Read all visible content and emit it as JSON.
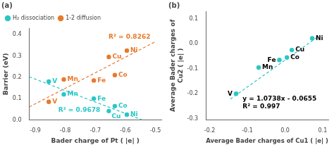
{
  "chart_data": [
    {
      "type": "scatter",
      "title": "(a)",
      "x_label": "Bader charge of Pt ( |e| )",
      "y_label": "Barrier (eV)",
      "xlim": [
        -0.92,
        -0.48
      ],
      "ylim": [
        0.0,
        0.43
      ],
      "xticks": [
        -0.9,
        -0.8,
        -0.7,
        -0.6,
        -0.5
      ],
      "yticks": [
        {
          "value": 0.0,
          "label": "0.0"
        },
        0.1,
        0.2,
        0.3,
        0.4
      ],
      "grid": false,
      "legend": "upper left",
      "series": [
        {
          "name": "H₂ dissociation",
          "type": "scatter",
          "marker": "circle",
          "color": "#29C6C6",
          "x": [
            -0.855,
            -0.805,
            -0.705,
            -0.635,
            -0.655,
            -0.595
          ],
          "values": [
            0.18,
            0.12,
            0.1,
            0.065,
            0.042,
            0.025
          ],
          "point_labels": [
            "V",
            "Mn",
            "Fe",
            "Co",
            "Cu",
            "Ni"
          ]
        },
        {
          "name": "1-2 diffusion",
          "type": "scatter",
          "marker": "circle",
          "color": "#E8792A",
          "x": [
            -0.855,
            -0.805,
            -0.705,
            -0.635,
            -0.655,
            -0.595
          ],
          "values": [
            0.085,
            0.19,
            0.185,
            0.21,
            0.295,
            0.325
          ],
          "point_labels": [
            "V",
            "Mn",
            "Fe",
            "Co",
            "Cu",
            "Ni"
          ]
        },
        {
          "type": "line",
          "line_style": "dashed",
          "color": "#29C6C6",
          "x": [
            -0.92,
            -0.5429
          ],
          "values": [
            0.2021,
            0.0
          ]
        },
        {
          "type": "line",
          "line_style": "dashed",
          "color": "#E8792A",
          "x": [
            -0.92,
            -0.5
          ],
          "values": [
            0.0611,
            0.3664
          ]
        }
      ],
      "annotations": [
        {
          "text": "R² = 0.8262",
          "color": "#E8792A"
        },
        {
          "text": "R² = 0.9678",
          "color": "#29C6C6"
        }
      ]
    },
    {
      "type": "scatter",
      "title": "(b)",
      "x_label": "Average Bader charges of Cu1 ( |e| )",
      "y_label": "Average Bader charges of\nCu2 ( |e| )",
      "xlim": [
        -0.21,
        0.115
      ],
      "ylim": [
        -0.305,
        0.13
      ],
      "xticks": [
        -0.2,
        -0.1,
        {
          "value": 0.0,
          "label": "0.0"
        },
        0.1
      ],
      "yticks": [
        -0.3,
        -0.2,
        -0.1,
        {
          "value": 0.0,
          "label": "0.0"
        },
        0.1
      ],
      "grid": false,
      "series": [
        {
          "type": "scatter",
          "marker": "circle",
          "color": "#29C6C6",
          "x": [
            -0.13,
            -0.07,
            -0.015,
            0.005,
            0.018,
            0.072
          ],
          "values": [
            -0.2,
            -0.095,
            -0.065,
            -0.055,
            -0.025,
            0.022
          ],
          "point_labels": [
            "V",
            "Mn",
            "Fe",
            "Co",
            "Cu",
            "Ni"
          ]
        },
        {
          "type": "line",
          "line_style": "dashed",
          "color": "#29C6C6",
          "x": [
            -0.145,
            0.085
          ],
          "values": [
            -0.221201,
            0.025773
          ]
        }
      ],
      "annotations": [
        {
          "text": "y = 1.0738x - 0.0655\nR² = 0.997"
        }
      ]
    }
  ]
}
